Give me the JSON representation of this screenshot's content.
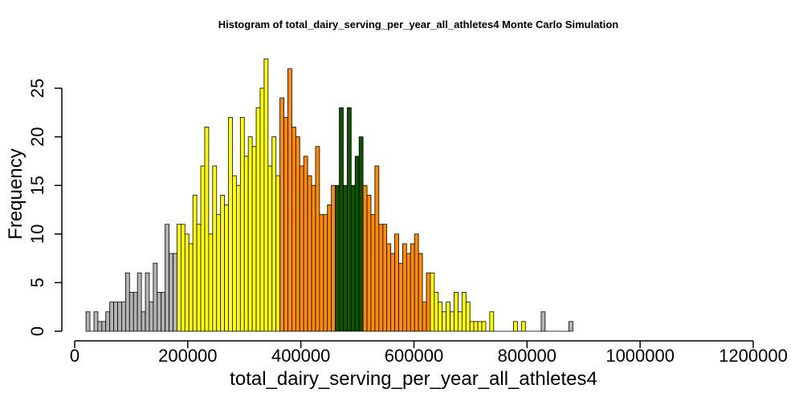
{
  "chart_data": {
    "type": "bar",
    "title": "Histogram of  total_dairy_serving_per_year_all_athletes4  Monte Carlo Simulation",
    "xlabel": "total_dairy_serving_per_year_all_athletes4",
    "ylabel": "Frequency",
    "xlim": [
      0,
      1200000
    ],
    "ylim": [
      0,
      28
    ],
    "xticks": [
      0,
      200000,
      400000,
      600000,
      800000,
      1000000,
      1200000
    ],
    "yticks": [
      0,
      5,
      10,
      15,
      20,
      25
    ],
    "grid": false,
    "bin_start": 20000,
    "bin_width": 7000,
    "counts": [
      2,
      0,
      2,
      1,
      1,
      2,
      3,
      3,
      3,
      3,
      6,
      4,
      4,
      6,
      2,
      6,
      3,
      7,
      4,
      4,
      11,
      8,
      8,
      11,
      11,
      10,
      9,
      14,
      11,
      17,
      21,
      10,
      17,
      12,
      14,
      13,
      22,
      16,
      15,
      22,
      18,
      20,
      19,
      23,
      25,
      28,
      17,
      20,
      16,
      24,
      22,
      27,
      21,
      20,
      17,
      18,
      16,
      15,
      19,
      12,
      12,
      13,
      15,
      15,
      23,
      15,
      23,
      15,
      18,
      20,
      15,
      14,
      12,
      17,
      11,
      11,
      9,
      8,
      10,
      7,
      9,
      8,
      9,
      10,
      8,
      3,
      6,
      6,
      4,
      3,
      2,
      3,
      2,
      4,
      2,
      4,
      3,
      1,
      1,
      1,
      1,
      0,
      2,
      0,
      0,
      0,
      0,
      0,
      1,
      0,
      1,
      0,
      0,
      0,
      0,
      2,
      0,
      0,
      0,
      0,
      0,
      0,
      1
    ],
    "color_ranges": [
      {
        "from": 20000,
        "to": 180000,
        "color": "#B3B3B3"
      },
      {
        "from": 180000,
        "to": 362000,
        "color": "#FFFF00"
      },
      {
        "from": 362000,
        "to": 460000,
        "color": "#FF8C00"
      },
      {
        "from": 460000,
        "to": 510000,
        "color": "#0D5300"
      },
      {
        "from": 510000,
        "to": 628000,
        "color": "#FF8C00"
      },
      {
        "from": 628000,
        "to": 810000,
        "color": "#FFFF00"
      },
      {
        "from": 810000,
        "to": 1200000,
        "color": "#B3B3B3"
      }
    ]
  }
}
